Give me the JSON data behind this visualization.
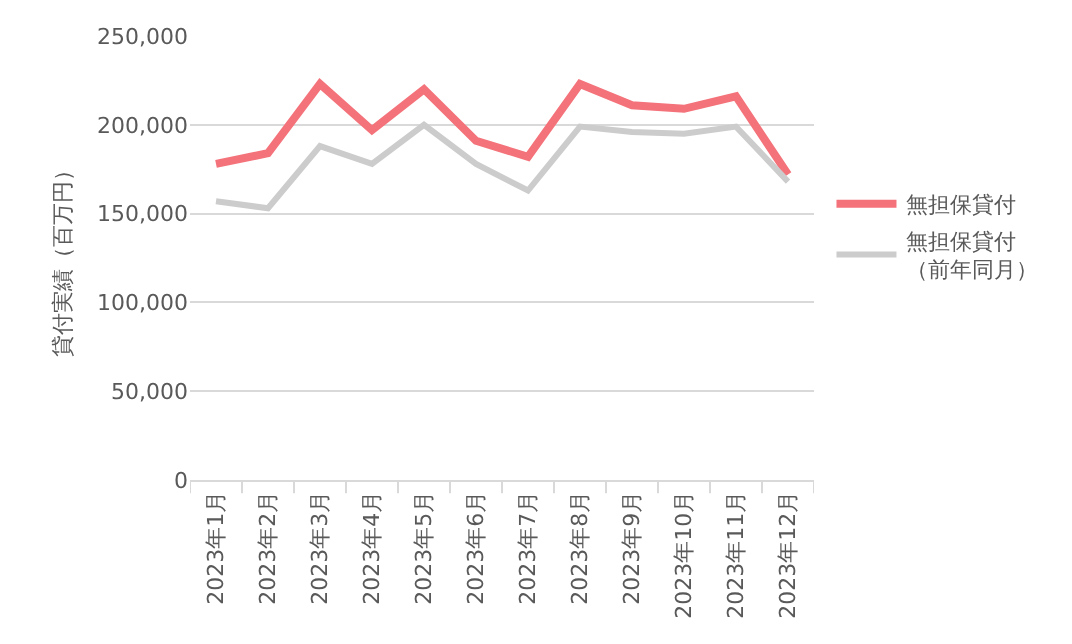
{
  "chart_data": {
    "type": "line",
    "ylabel": "貸付実績（百万円）",
    "categories": [
      "2023年1月",
      "2023年2月",
      "2023年3月",
      "2023年4月",
      "2023年5月",
      "2023年6月",
      "2023年7月",
      "2023年8月",
      "2023年9月",
      "2023年10月",
      "2023年11月",
      "2023年12月"
    ],
    "series": [
      {
        "name": "無担保貸付",
        "color": "#f4727a",
        "values": [
          178000,
          184000,
          223000,
          197000,
          220000,
          191000,
          182000,
          223000,
          211000,
          209000,
          216000,
          172000
        ]
      },
      {
        "name": "無担保貸付（前年同月）",
        "color": "#cccccc",
        "values": [
          157000,
          153000,
          188000,
          178000,
          200000,
          178000,
          163000,
          199000,
          196000,
          195000,
          199000,
          168000
        ]
      }
    ],
    "ylim": [
      0,
      250000
    ],
    "yticks": [
      0,
      {
        "value": 50000,
        "label": "50,000"
      },
      {
        "value": 100000,
        "label": "100,000"
      },
      {
        "value": 150000,
        "label": "150,000"
      },
      {
        "value": 200000,
        "label": "200,000"
      },
      {
        "value": 250000,
        "label": "250,000"
      }
    ],
    "grid": "y",
    "legend": "right",
    "marker": "none",
    "line_style": "solid"
  }
}
